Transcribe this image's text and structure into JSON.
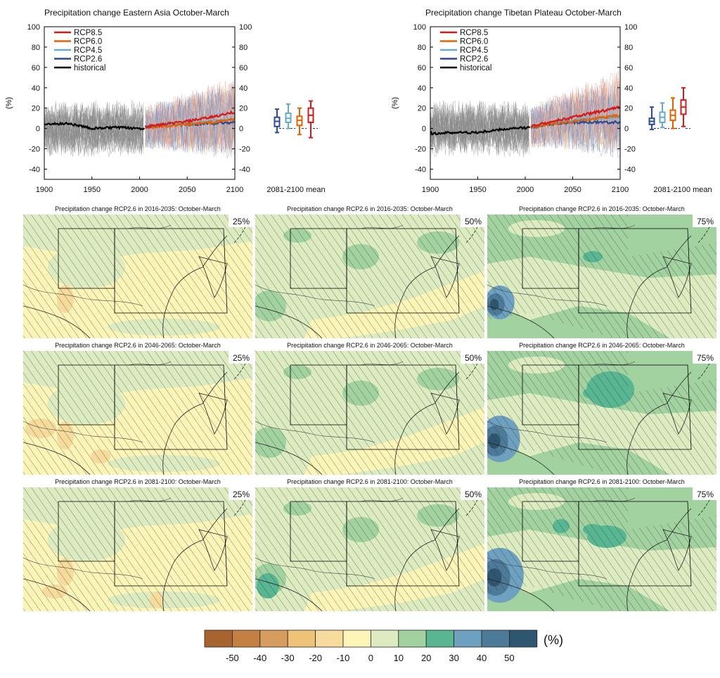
{
  "timeseries": [
    {
      "title": "Precipitation change Eastern Asia October-March"
    },
    {
      "title": "Precipitation change Tibetan Plateau October-March"
    }
  ],
  "maps": {
    "titles": [
      [
        "Precipitation change RCP2.6 in 2016-2035: October-March",
        "Precipitation change RCP2.6 in 2016-2035: October-March",
        "Precipitation change RCP2.6 in 2016-2035: October-March"
      ],
      [
        "Precipitation change RCP2.6 in 2046-2065: October-March",
        "Precipitation change RCP2.6 in 2046-2065: October-March",
        "Precipitation change RCP2.6 in 2046-2065: October-March"
      ],
      [
        "Precipitation change RCP2.6 in 2081-2100: October-March",
        "Precipitation change RCP2.6 in 2081-2100: October-March",
        "Precipitation change RCP2.6 in 2081-2100: October-March"
      ]
    ],
    "percentiles": [
      "25%",
      "50%",
      "75%"
    ]
  },
  "colorbar": {
    "unit": "(%)",
    "ticks": [
      "-50",
      "-40",
      "-30",
      "-20",
      "-10",
      "0",
      "10",
      "20",
      "30",
      "40",
      "50"
    ],
    "colors": [
      "#a8642f",
      "#c47f42",
      "#d79d5e",
      "#eec378",
      "#f6db9c",
      "#fdf4b7",
      "#dcebc0",
      "#a2d2a0",
      "#58b692",
      "#6ea0bf",
      "#4d7a99",
      "#2e566e"
    ]
  },
  "chart_data": [
    {
      "type": "line",
      "title": "Precipitation change Eastern Asia October-March",
      "ylabel": "(%)",
      "xlim": [
        1900,
        2100
      ],
      "ylim": [
        -50,
        100
      ],
      "xticks": [
        1900,
        1950,
        2000,
        2050,
        2100
      ],
      "yticks": [
        100,
        80,
        60,
        40,
        20,
        0,
        -20,
        -40
      ],
      "legend_position": "top-left",
      "series": [
        {
          "name": "RCP8.5",
          "color": "#d7191c",
          "x": [
            2006,
            2025,
            2050,
            2075,
            2100
          ],
          "values": [
            2,
            4,
            7,
            11,
            16
          ]
        },
        {
          "name": "RCP6.0",
          "color": "#e66101",
          "x": [
            2006,
            2025,
            2050,
            2075,
            2100
          ],
          "values": [
            1,
            2,
            4,
            6,
            9
          ]
        },
        {
          "name": "RCP4.5",
          "color": "#67a9cf",
          "x": [
            2006,
            2025,
            2050,
            2075,
            2100
          ],
          "values": [
            1,
            3,
            5,
            7,
            9
          ]
        },
        {
          "name": "RCP2.6",
          "color": "#2c4a9a",
          "x": [
            2006,
            2025,
            2050,
            2075,
            2100
          ],
          "values": [
            1,
            3,
            4,
            5,
            6
          ]
        },
        {
          "name": "historical",
          "color": "#000000",
          "x": [
            1900,
            1925,
            1950,
            1975,
            2005
          ],
          "values": [
            4,
            5,
            0,
            1,
            0
          ]
        }
      ],
      "box_label": "2081-2100 mean",
      "boxes": [
        {
          "series": "RCP2.6",
          "color": "#2c4a9a",
          "whisker": [
            -4,
            19
          ],
          "box": [
            2,
            11
          ],
          "median": 7
        },
        {
          "series": "RCP4.5",
          "color": "#67a9cf",
          "whisker": [
            0,
            24
          ],
          "box": [
            6,
            15
          ],
          "median": 10
        },
        {
          "series": "RCP6.0",
          "color": "#e66101",
          "whisker": [
            -6,
            20
          ],
          "box": [
            3,
            12
          ],
          "median": 8
        },
        {
          "series": "RCP8.5",
          "color": "#d7191c",
          "whisker": [
            -9,
            27
          ],
          "box": [
            6,
            20
          ],
          "median": 13
        }
      ]
    },
    {
      "type": "line",
      "title": "Precipitation change Tibetan Plateau October-March",
      "ylabel": "(%)",
      "xlim": [
        1900,
        2100
      ],
      "ylim": [
        -50,
        100
      ],
      "xticks": [
        1900,
        1950,
        2000,
        2050,
        2100
      ],
      "yticks": [
        100,
        80,
        60,
        40,
        20,
        0,
        -20,
        -40
      ],
      "legend_position": "top-left",
      "series": [
        {
          "name": "RCP8.5",
          "color": "#d7191c",
          "x": [
            2006,
            2025,
            2050,
            2075,
            2100
          ],
          "values": [
            2,
            6,
            11,
            16,
            21
          ]
        },
        {
          "name": "RCP6.0",
          "color": "#e66101",
          "x": [
            2006,
            2025,
            2050,
            2075,
            2100
          ],
          "values": [
            1,
            4,
            7,
            10,
            13
          ]
        },
        {
          "name": "RCP4.5",
          "color": "#67a9cf",
          "x": [
            2006,
            2025,
            2050,
            2075,
            2100
          ],
          "values": [
            1,
            5,
            8,
            10,
            11
          ]
        },
        {
          "name": "RCP2.6",
          "color": "#2c4a9a",
          "x": [
            2006,
            2025,
            2050,
            2075,
            2100
          ],
          "values": [
            1,
            4,
            6,
            6,
            6
          ]
        },
        {
          "name": "historical",
          "color": "#000000",
          "x": [
            1900,
            1925,
            1950,
            1975,
            2005
          ],
          "values": [
            -5,
            -4,
            -4,
            -1,
            1
          ]
        }
      ],
      "box_label": "2081-2100 mean",
      "boxes": [
        {
          "series": "RCP2.6",
          "color": "#2c4a9a",
          "whisker": [
            -1,
            21
          ],
          "box": [
            4,
            10
          ],
          "median": 7
        },
        {
          "series": "RCP4.5",
          "color": "#67a9cf",
          "whisker": [
            1,
            25
          ],
          "box": [
            6,
            16
          ],
          "median": 11
        },
        {
          "series": "RCP6.0",
          "color": "#e66101",
          "whisker": [
            0,
            30
          ],
          "box": [
            8,
            18
          ],
          "median": 13
        },
        {
          "series": "RCP8.5",
          "color": "#d7191c",
          "whisker": [
            2,
            40
          ],
          "box": [
            14,
            28
          ],
          "median": 21
        }
      ]
    }
  ]
}
